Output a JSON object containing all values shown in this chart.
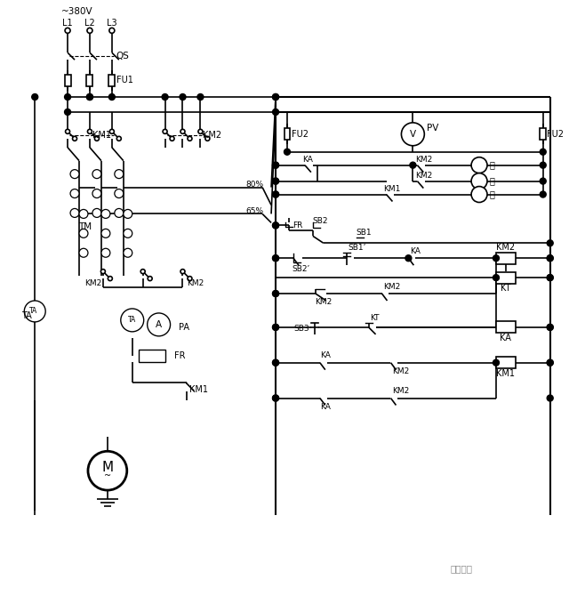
{
  "bg_color": "#ffffff",
  "line_color": "#000000",
  "labels": {
    "voltage": "~380V",
    "L1": "L1",
    "L2": "L2",
    "L3": "L3",
    "QS": "QS",
    "FU1": "FU1",
    "FU2": "FU2",
    "KM1": "KM1",
    "KM2": "KM2",
    "TM": "TM",
    "TA": "TA",
    "PA": "PA",
    "FR": "FR",
    "M": "M",
    "PV": "PV",
    "V": "V",
    "KA": "KA",
    "KT": "KT",
    "SB1": "SB1",
    "SB1p": "SB1’",
    "SB2": "SB2",
    "SB2p": "SB2’",
    "SB3": "SB3",
    "green": "绿",
    "yellow": "黄",
    "red": "红",
    "pct80": "80%",
    "pct65": "65%",
    "brand": "技成培训"
  }
}
